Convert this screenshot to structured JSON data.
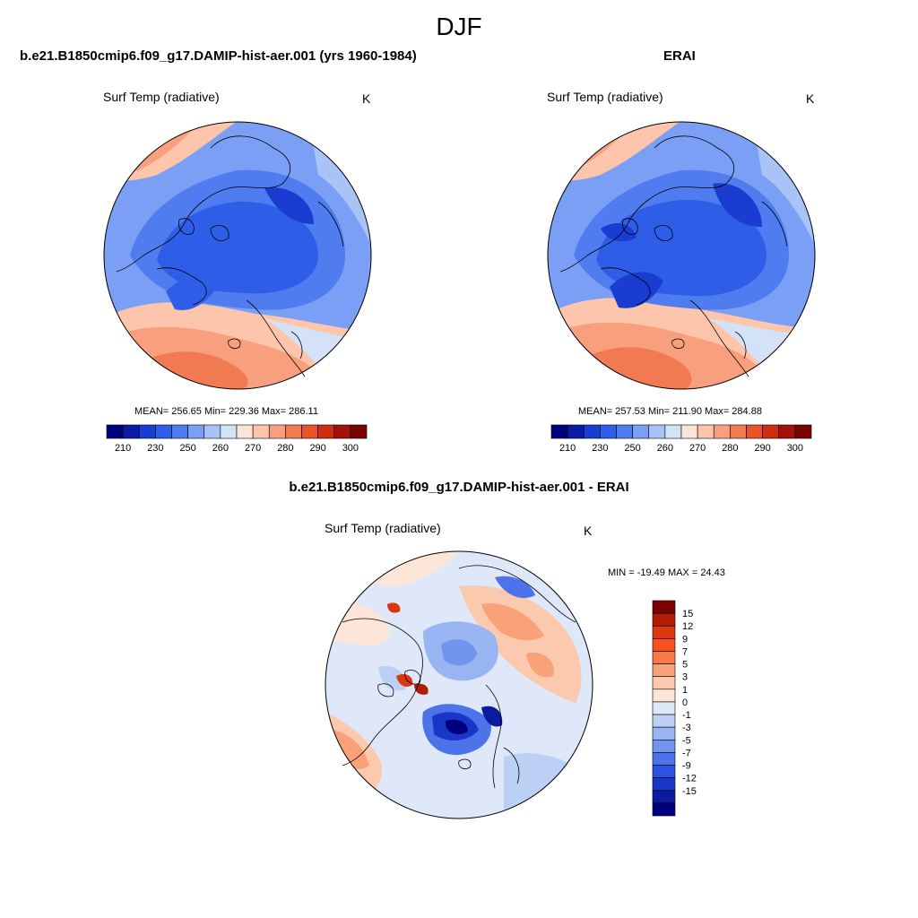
{
  "season": "DJF",
  "panels": {
    "model": {
      "title": "b.e21.B1850cmip6.f09_g17.DAMIP-hist-aer.001 (yrs 1960-1984)",
      "variable": "Surf Temp (radiative)",
      "units": "K",
      "stats": "MEAN= 256.65  Min= 229.36  Max= 286.11"
    },
    "obs": {
      "title": "ERAI",
      "variable": "Surf Temp (radiative)",
      "units": "K",
      "stats": "MEAN= 257.53  Min= 211.90  Max= 284.88"
    },
    "diff": {
      "title": "b.e21.B1850cmip6.f09_g17.DAMIP-hist-aer.001 - ERAI",
      "variable": "Surf Temp (radiative)",
      "units": "K",
      "stats": "MIN = -19.49 MAX =  24.43"
    }
  },
  "abs_colorbar": {
    "colors": [
      "#00007f",
      "#0a1aa6",
      "#1a3cd0",
      "#2e5ee8",
      "#4f7df0",
      "#7a9ff4",
      "#a9c3f6",
      "#d4e2f8",
      "#fde4d6",
      "#fcc5ac",
      "#f8a07e",
      "#f27a52",
      "#e8552c",
      "#cc2f12",
      "#a21208",
      "#7a0202"
    ],
    "tick_labels": [
      "210",
      "230",
      "250",
      "260",
      "270",
      "280",
      "290",
      "300"
    ]
  },
  "diff_colorbar": {
    "colors": [
      "#7a0202",
      "#b01c06",
      "#dc3810",
      "#f5521f",
      "#f77a45",
      "#f9a27a",
      "#fbcaae",
      "#fde6d8",
      "#dfe8f8",
      "#bcd0f6",
      "#98b4f2",
      "#7294ee",
      "#4d73ea",
      "#2b52e2",
      "#1a36c8",
      "#0a1ba0",
      "#00007f"
    ],
    "tick_labels": [
      "15",
      "12",
      "9",
      "7",
      "5",
      "3",
      "1",
      "0",
      "-1",
      "-3",
      "-5",
      "-7",
      "-9",
      "-12",
      "-15"
    ]
  }
}
